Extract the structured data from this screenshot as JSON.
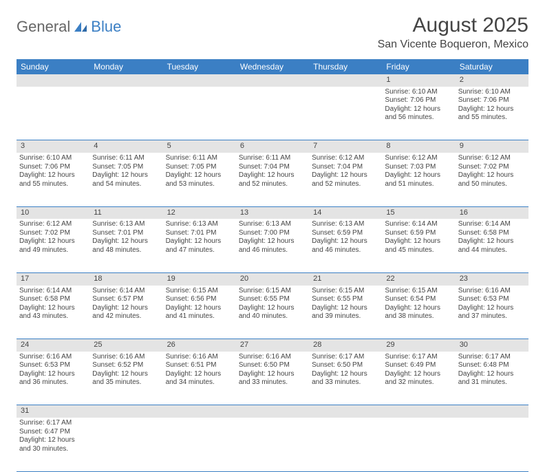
{
  "logo": {
    "text1": "General",
    "text2": "Blue"
  },
  "title": "August 2025",
  "location": "San Vicente Boqueron, Mexico",
  "colors": {
    "header_bg": "#3b7fc4",
    "daynum_bg": "#e4e4e4",
    "border": "#3b7fc4"
  },
  "day_headers": [
    "Sunday",
    "Monday",
    "Tuesday",
    "Wednesday",
    "Thursday",
    "Friday",
    "Saturday"
  ],
  "weeks": [
    [
      null,
      null,
      null,
      null,
      null,
      {
        "n": "1",
        "sr": "Sunrise: 6:10 AM",
        "ss": "Sunset: 7:06 PM",
        "d1": "Daylight: 12 hours",
        "d2": "and 56 minutes."
      },
      {
        "n": "2",
        "sr": "Sunrise: 6:10 AM",
        "ss": "Sunset: 7:06 PM",
        "d1": "Daylight: 12 hours",
        "d2": "and 55 minutes."
      }
    ],
    [
      {
        "n": "3",
        "sr": "Sunrise: 6:10 AM",
        "ss": "Sunset: 7:06 PM",
        "d1": "Daylight: 12 hours",
        "d2": "and 55 minutes."
      },
      {
        "n": "4",
        "sr": "Sunrise: 6:11 AM",
        "ss": "Sunset: 7:05 PM",
        "d1": "Daylight: 12 hours",
        "d2": "and 54 minutes."
      },
      {
        "n": "5",
        "sr": "Sunrise: 6:11 AM",
        "ss": "Sunset: 7:05 PM",
        "d1": "Daylight: 12 hours",
        "d2": "and 53 minutes."
      },
      {
        "n": "6",
        "sr": "Sunrise: 6:11 AM",
        "ss": "Sunset: 7:04 PM",
        "d1": "Daylight: 12 hours",
        "d2": "and 52 minutes."
      },
      {
        "n": "7",
        "sr": "Sunrise: 6:12 AM",
        "ss": "Sunset: 7:04 PM",
        "d1": "Daylight: 12 hours",
        "d2": "and 52 minutes."
      },
      {
        "n": "8",
        "sr": "Sunrise: 6:12 AM",
        "ss": "Sunset: 7:03 PM",
        "d1": "Daylight: 12 hours",
        "d2": "and 51 minutes."
      },
      {
        "n": "9",
        "sr": "Sunrise: 6:12 AM",
        "ss": "Sunset: 7:02 PM",
        "d1": "Daylight: 12 hours",
        "d2": "and 50 minutes."
      }
    ],
    [
      {
        "n": "10",
        "sr": "Sunrise: 6:12 AM",
        "ss": "Sunset: 7:02 PM",
        "d1": "Daylight: 12 hours",
        "d2": "and 49 minutes."
      },
      {
        "n": "11",
        "sr": "Sunrise: 6:13 AM",
        "ss": "Sunset: 7:01 PM",
        "d1": "Daylight: 12 hours",
        "d2": "and 48 minutes."
      },
      {
        "n": "12",
        "sr": "Sunrise: 6:13 AM",
        "ss": "Sunset: 7:01 PM",
        "d1": "Daylight: 12 hours",
        "d2": "and 47 minutes."
      },
      {
        "n": "13",
        "sr": "Sunrise: 6:13 AM",
        "ss": "Sunset: 7:00 PM",
        "d1": "Daylight: 12 hours",
        "d2": "and 46 minutes."
      },
      {
        "n": "14",
        "sr": "Sunrise: 6:13 AM",
        "ss": "Sunset: 6:59 PM",
        "d1": "Daylight: 12 hours",
        "d2": "and 46 minutes."
      },
      {
        "n": "15",
        "sr": "Sunrise: 6:14 AM",
        "ss": "Sunset: 6:59 PM",
        "d1": "Daylight: 12 hours",
        "d2": "and 45 minutes."
      },
      {
        "n": "16",
        "sr": "Sunrise: 6:14 AM",
        "ss": "Sunset: 6:58 PM",
        "d1": "Daylight: 12 hours",
        "d2": "and 44 minutes."
      }
    ],
    [
      {
        "n": "17",
        "sr": "Sunrise: 6:14 AM",
        "ss": "Sunset: 6:58 PM",
        "d1": "Daylight: 12 hours",
        "d2": "and 43 minutes."
      },
      {
        "n": "18",
        "sr": "Sunrise: 6:14 AM",
        "ss": "Sunset: 6:57 PM",
        "d1": "Daylight: 12 hours",
        "d2": "and 42 minutes."
      },
      {
        "n": "19",
        "sr": "Sunrise: 6:15 AM",
        "ss": "Sunset: 6:56 PM",
        "d1": "Daylight: 12 hours",
        "d2": "and 41 minutes."
      },
      {
        "n": "20",
        "sr": "Sunrise: 6:15 AM",
        "ss": "Sunset: 6:55 PM",
        "d1": "Daylight: 12 hours",
        "d2": "and 40 minutes."
      },
      {
        "n": "21",
        "sr": "Sunrise: 6:15 AM",
        "ss": "Sunset: 6:55 PM",
        "d1": "Daylight: 12 hours",
        "d2": "and 39 minutes."
      },
      {
        "n": "22",
        "sr": "Sunrise: 6:15 AM",
        "ss": "Sunset: 6:54 PM",
        "d1": "Daylight: 12 hours",
        "d2": "and 38 minutes."
      },
      {
        "n": "23",
        "sr": "Sunrise: 6:16 AM",
        "ss": "Sunset: 6:53 PM",
        "d1": "Daylight: 12 hours",
        "d2": "and 37 minutes."
      }
    ],
    [
      {
        "n": "24",
        "sr": "Sunrise: 6:16 AM",
        "ss": "Sunset: 6:53 PM",
        "d1": "Daylight: 12 hours",
        "d2": "and 36 minutes."
      },
      {
        "n": "25",
        "sr": "Sunrise: 6:16 AM",
        "ss": "Sunset: 6:52 PM",
        "d1": "Daylight: 12 hours",
        "d2": "and 35 minutes."
      },
      {
        "n": "26",
        "sr": "Sunrise: 6:16 AM",
        "ss": "Sunset: 6:51 PM",
        "d1": "Daylight: 12 hours",
        "d2": "and 34 minutes."
      },
      {
        "n": "27",
        "sr": "Sunrise: 6:16 AM",
        "ss": "Sunset: 6:50 PM",
        "d1": "Daylight: 12 hours",
        "d2": "and 33 minutes."
      },
      {
        "n": "28",
        "sr": "Sunrise: 6:17 AM",
        "ss": "Sunset: 6:50 PM",
        "d1": "Daylight: 12 hours",
        "d2": "and 33 minutes."
      },
      {
        "n": "29",
        "sr": "Sunrise: 6:17 AM",
        "ss": "Sunset: 6:49 PM",
        "d1": "Daylight: 12 hours",
        "d2": "and 32 minutes."
      },
      {
        "n": "30",
        "sr": "Sunrise: 6:17 AM",
        "ss": "Sunset: 6:48 PM",
        "d1": "Daylight: 12 hours",
        "d2": "and 31 minutes."
      }
    ],
    [
      {
        "n": "31",
        "sr": "Sunrise: 6:17 AM",
        "ss": "Sunset: 6:47 PM",
        "d1": "Daylight: 12 hours",
        "d2": "and 30 minutes."
      },
      null,
      null,
      null,
      null,
      null,
      null
    ]
  ]
}
